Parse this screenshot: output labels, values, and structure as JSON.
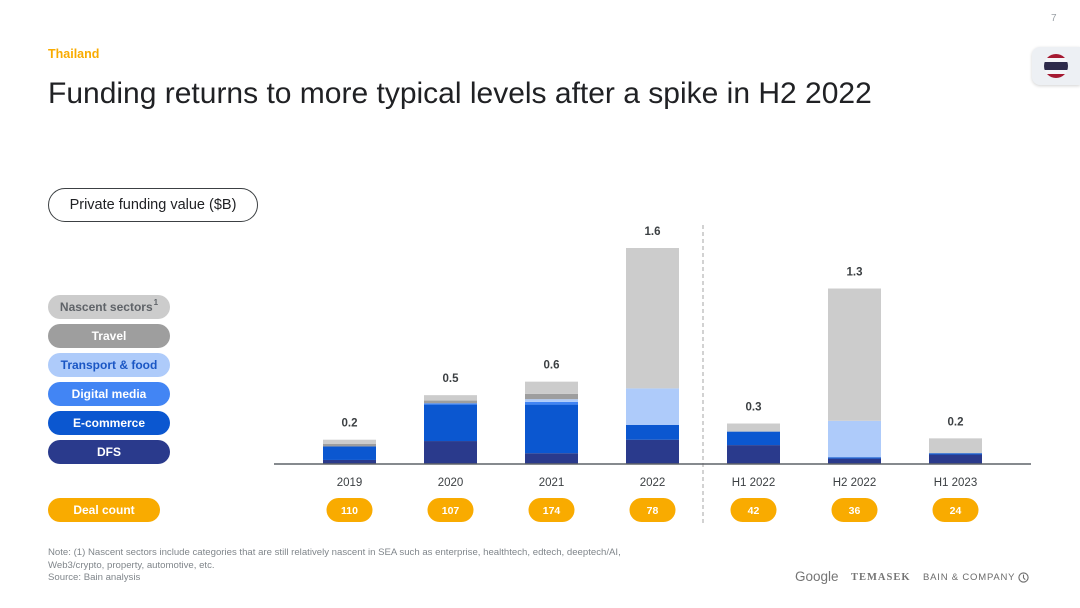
{
  "page": {
    "number": "7"
  },
  "header": {
    "kicker": "Thailand",
    "title": "Funding returns to more typical levels after a spike in H2 2022"
  },
  "flag": {
    "icon": "thailand-flag-icon",
    "colors": {
      "red": "#a51931",
      "white": "#f4f5f8",
      "blue": "#2d2a4a"
    }
  },
  "chart_data": {
    "type": "bar",
    "stacked": true,
    "ylabel": "Private funding value ($B)",
    "categories": [
      "2019",
      "2020",
      "2021",
      "2022",
      "H1 2022",
      "H2 2022",
      "H1 2023"
    ],
    "series": [
      {
        "name": "Nascent sectors",
        "footnote": "1",
        "color": "#cccccc",
        "label_color": "#5f6368",
        "values": [
          0.03,
          0.04,
          0.09,
          1.04,
          0.06,
          0.98,
          0.11
        ]
      },
      {
        "name": "Travel",
        "color": "#9e9e9e",
        "label_color": "#ffffff",
        "values": [
          0.02,
          0.02,
          0.04,
          0,
          0,
          0,
          0
        ]
      },
      {
        "name": "Transport & food",
        "color": "#aecbfa",
        "label_color": "#1a56c4",
        "values": [
          0,
          0,
          0.02,
          0.27,
          0,
          0.27,
          0
        ]
      },
      {
        "name": "Digital media",
        "color": "#4285f4",
        "label_color": "#ffffff",
        "values": [
          0,
          0.01,
          0.02,
          0,
          0,
          0,
          0
        ]
      },
      {
        "name": "E-commerce",
        "color": "#0b57d0",
        "label_color": "#ffffff",
        "values": [
          0.1,
          0.27,
          0.36,
          0.11,
          0.1,
          0.01,
          0.01
        ]
      },
      {
        "name": "DFS",
        "color": "#2a3a8c",
        "label_color": "#ffffff",
        "values": [
          0.03,
          0.17,
          0.08,
          0.18,
          0.14,
          0.04,
          0.07
        ]
      }
    ],
    "totals": [
      0.2,
      0.5,
      0.6,
      1.6,
      0.3,
      1.3,
      0.2
    ],
    "ylim": [
      0,
      1.6
    ],
    "divider_after_index": 3,
    "grid": false,
    "legend": {
      "placement": "left"
    },
    "deal_count": {
      "label": "Deal count",
      "color": "#f9ab00",
      "values": [
        110,
        107,
        174,
        78,
        42,
        36,
        24
      ]
    }
  },
  "footer": {
    "note_lines": [
      "Note: (1) Nascent sectors include categories that are still relatively nascent in SEA such as enterprise, healthtech, edtech, deeptech/AI,",
      "Web3/crypto, property, automotive, etc."
    ],
    "source": "Source: Bain analysis",
    "logos": {
      "google": "Google",
      "temasek": "TEMASEK",
      "bain": "BAIN & COMPANY",
      "bain_icon": "bain-circle-icon"
    }
  },
  "colors": {
    "accent": "#f9ab00",
    "title": "#202124",
    "muted": "#80868b"
  }
}
